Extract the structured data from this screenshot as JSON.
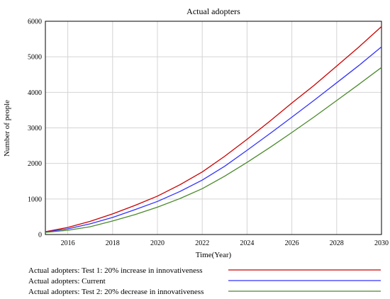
{
  "chart_data": {
    "type": "line",
    "title": "Actual adopters",
    "xlabel": "Time(Year)",
    "ylabel": "Number of people",
    "xlim": [
      2015,
      2030
    ],
    "ylim": [
      0,
      6000
    ],
    "x_ticks": [
      2016,
      2018,
      2020,
      2022,
      2024,
      2026,
      2028,
      2030
    ],
    "y_ticks": [
      0,
      1000,
      2000,
      3000,
      4000,
      5000,
      6000
    ],
    "grid": true,
    "legend_position": "bottom",
    "x": [
      2015,
      2016,
      2017,
      2018,
      2019,
      2020,
      2021,
      2022,
      2023,
      2024,
      2025,
      2026,
      2027,
      2028,
      2029,
      2030
    ],
    "series": [
      {
        "name": "Actual adopters: Test 1: 20% increase in innovativeness",
        "color": "#cc0000",
        "values": [
          80,
          200,
          370,
          580,
          820,
          1080,
          1400,
          1760,
          2200,
          2680,
          3180,
          3700,
          4200,
          4740,
          5280,
          5850
        ]
      },
      {
        "name": "Actual adopters: Current",
        "color": "#3333ff",
        "values": [
          70,
          160,
          300,
          480,
          700,
          930,
          1210,
          1530,
          1920,
          2370,
          2830,
          3300,
          3780,
          4270,
          4760,
          5280
        ]
      },
      {
        "name": "Actual adopters: Test 2: 20% decrease in innovativeness",
        "color": "#4a8a2a",
        "values": [
          60,
          120,
          220,
          380,
          560,
          770,
          1010,
          1290,
          1640,
          2030,
          2440,
          2870,
          3310,
          3770,
          4230,
          4700
        ]
      }
    ]
  }
}
